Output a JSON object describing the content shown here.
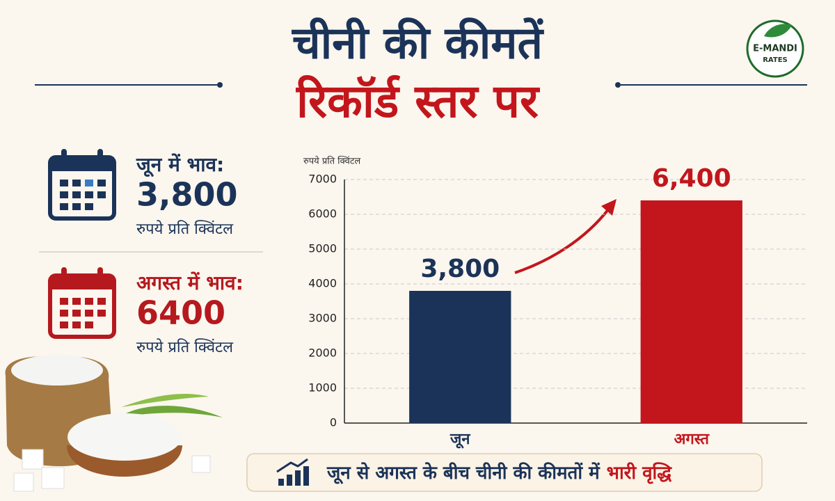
{
  "header": {
    "title_line1": "चीनी की कीमतें",
    "title_line2": "रिकॉर्ड स्तर पर"
  },
  "logo": {
    "line1": "E-MANDI",
    "line2": "RATES"
  },
  "panels": [
    {
      "label": "जून में भाव:",
      "value": "3,800",
      "unit": "रुपये प्रति क्विंटल"
    },
    {
      "label": "अगस्त में भाव:",
      "value": "6400",
      "unit": "रुपये प्रति क्विंटल"
    }
  ],
  "footer": {
    "text": "जून से अगस्त के बीच चीनी की कीमतों में",
    "highlight": "भारी वृद्धि"
  },
  "chart_data": {
    "type": "bar",
    "y_label": "रुपये प्रति क्विंटल",
    "categories": [
      "जून",
      "अगस्त"
    ],
    "values": [
      3800,
      6400
    ],
    "value_labels": [
      "3,800",
      "6,400"
    ],
    "colors": [
      "#1b3358",
      "#c2161c"
    ],
    "ylim": [
      0,
      7000
    ],
    "yticks": [
      0,
      1000,
      2000,
      3000,
      4000,
      5000,
      6000,
      7000
    ],
    "grid": true
  }
}
